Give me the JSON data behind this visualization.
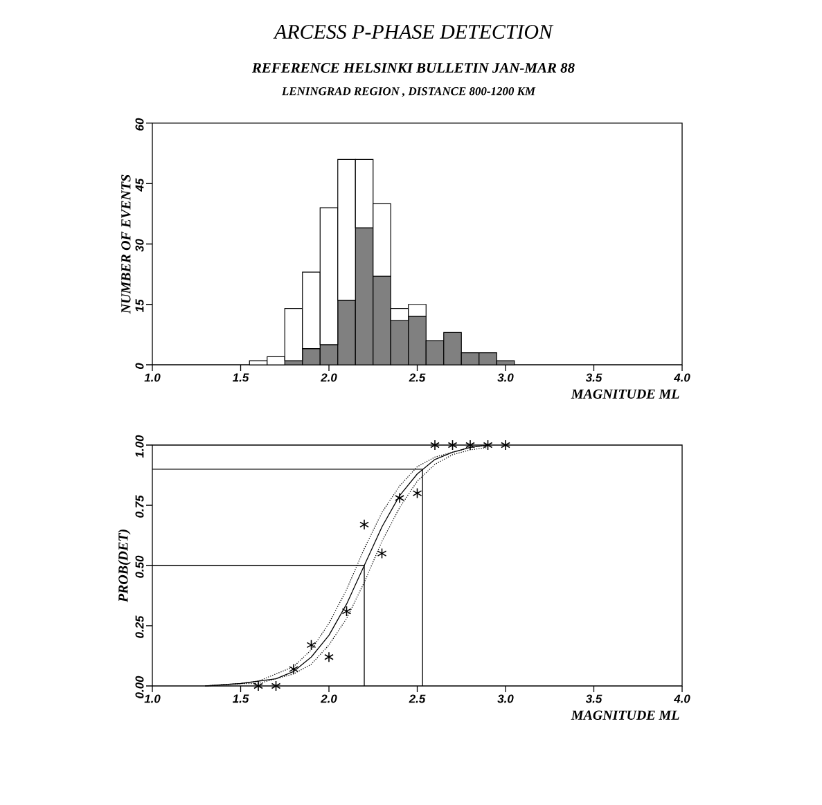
{
  "chart_data": [
    {
      "type": "bar",
      "title": "ARCESS P-PHASE DETECTION",
      "subtitle": "REFERENCE HELSINKI BULLETIN JAN-MAR 88",
      "annotations": [
        "LENINGRAD REGION , DISTANCE 800-1200 KM"
      ],
      "xlabel": "MAGNITUDE ML",
      "ylabel": "NUMBER OF EVENTS",
      "x": [
        1.6,
        1.7,
        1.8,
        1.9,
        2.0,
        2.1,
        2.2,
        2.3,
        2.4,
        2.5,
        2.6,
        2.7,
        2.8,
        2.9,
        3.0
      ],
      "series": [
        {
          "color": "#808080",
          "values": [
            0,
            0,
            1,
            4,
            5,
            16,
            34,
            22,
            11,
            12,
            6,
            8,
            3,
            3,
            1
          ]
        },
        {
          "color": "#ffffff",
          "values": [
            1,
            2,
            13,
            19,
            34,
            35,
            17,
            18,
            3,
            3,
            0,
            0,
            0,
            0,
            0
          ]
        }
      ],
      "stacked": true,
      "xlim": [
        1.0,
        4.0
      ],
      "xticks": [
        {
          "value": 1.0,
          "label": "1.0"
        },
        {
          "value": 1.5,
          "label": "1.5"
        },
        {
          "value": 2.0,
          "label": "2.0"
        },
        {
          "value": 2.5,
          "label": "2.5"
        },
        {
          "value": 3.0,
          "label": "3.0"
        },
        {
          "value": 3.5,
          "label": "3.5"
        },
        {
          "value": 4.0,
          "label": "4.0"
        }
      ],
      "ylim": [
        0,
        60
      ],
      "yticks": [
        0,
        15,
        30,
        45,
        60
      ]
    },
    {
      "type": "scatter",
      "xlabel": "MAGNITUDE ML",
      "ylabel": "PROB(DET)",
      "series": [
        {
          "type": "scatter",
          "color": "#000000",
          "marker": "cross",
          "x": [
            1.6,
            1.7,
            1.8,
            1.9,
            2.0,
            2.1,
            2.2,
            2.3,
            2.4,
            2.5,
            2.6,
            2.7,
            2.8,
            2.9,
            3.0
          ],
          "values": [
            0,
            0,
            0.07,
            0.17,
            0.12,
            0.31,
            0.67,
            0.55,
            0.78,
            0.8,
            1,
            1,
            1,
            1,
            1
          ]
        },
        {
          "type": "line",
          "color": "#000000",
          "line_style": "solid",
          "x": [
            1.3,
            1.5,
            1.6,
            1.7,
            1.8,
            1.9,
            2.0,
            2.1,
            2.2,
            2.3,
            2.4,
            2.5,
            2.6,
            2.7,
            2.8,
            2.9
          ],
          "values": [
            0,
            0.01,
            0.02,
            0.03,
            0.06,
            0.12,
            0.21,
            0.34,
            0.5,
            0.66,
            0.79,
            0.88,
            0.94,
            0.97,
            0.99,
            1.0
          ]
        },
        {
          "type": "line",
          "color": "#000000",
          "line_style": "dotted",
          "x": [
            1.3,
            1.5,
            1.6,
            1.7,
            1.8,
            1.9,
            2.0,
            2.1,
            2.2,
            2.3,
            2.4,
            2.5,
            2.6,
            2.7,
            2.8,
            2.9
          ],
          "values": [
            0,
            0.01,
            0.01,
            0.03,
            0.05,
            0.09,
            0.17,
            0.28,
            0.43,
            0.6,
            0.74,
            0.85,
            0.92,
            0.96,
            0.98,
            0.99
          ]
        },
        {
          "type": "line",
          "color": "#000000",
          "line_style": "dotted",
          "x": [
            1.3,
            1.5,
            1.6,
            1.7,
            1.8,
            1.9,
            2.0,
            2.1,
            2.2,
            2.3,
            2.4,
            2.5,
            2.6,
            2.7,
            2.8,
            2.9
          ],
          "values": [
            0,
            0.01,
            0.02,
            0.05,
            0.08,
            0.15,
            0.26,
            0.4,
            0.57,
            0.72,
            0.83,
            0.91,
            0.95,
            0.97,
            0.99,
            1.0
          ]
        },
        {
          "type": "line",
          "color": "#000000",
          "line_style": "solid",
          "x": [
            1.0,
            2.2,
            2.2
          ],
          "values": [
            0.5,
            0.5,
            0
          ]
        },
        {
          "type": "line",
          "color": "#000000",
          "line_style": "solid",
          "x": [
            1.0,
            2.53,
            2.53
          ],
          "values": [
            0.9,
            0.9,
            0
          ]
        }
      ],
      "xlim": [
        1.0,
        4.0
      ],
      "xticks": [
        {
          "value": 1.0,
          "label": "1.0"
        },
        {
          "value": 1.5,
          "label": "1.5"
        },
        {
          "value": 2.0,
          "label": "2.0"
        },
        {
          "value": 2.5,
          "label": "2.5"
        },
        {
          "value": 3.0,
          "label": "3.0"
        },
        {
          "value": 3.5,
          "label": "3.5"
        },
        {
          "value": 4.0,
          "label": "4.0"
        }
      ],
      "ylim": [
        0,
        1
      ],
      "yticks": [
        {
          "value": 0,
          "label": "0.00"
        },
        {
          "value": 0.25,
          "label": "0.25"
        },
        {
          "value": 0.5,
          "label": "0.50"
        },
        {
          "value": 0.75,
          "label": "0.75"
        },
        {
          "value": 1,
          "label": "1.00"
        }
      ]
    }
  ]
}
